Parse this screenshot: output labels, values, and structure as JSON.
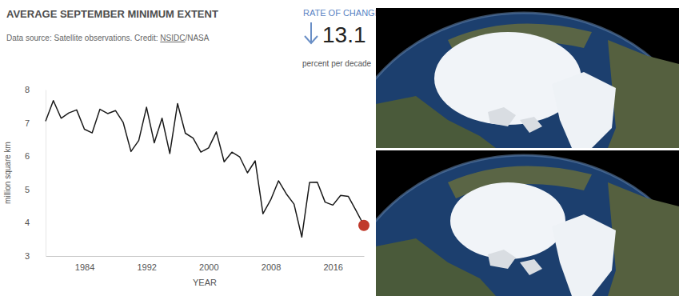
{
  "chart_data": {
    "type": "line",
    "title": "AVERAGE SEPTEMBER MINIMUM EXTENT",
    "source": {
      "text": "Data source: Satellite observations. Credit: ",
      "link": "NSIDC",
      "after": "/NASA"
    },
    "rate_of_change": {
      "label": "RATE OF CHANGE",
      "value": 13.1,
      "unit": "percent per decade"
    },
    "x": [
      1979,
      1980,
      1981,
      1982,
      1983,
      1984,
      1985,
      1986,
      1987,
      1988,
      1989,
      1990,
      1991,
      1992,
      1993,
      1994,
      1995,
      1996,
      1997,
      1998,
      1999,
      2000,
      2001,
      2002,
      2003,
      2004,
      2005,
      2006,
      2007,
      2008,
      2009,
      2010,
      2011,
      2012,
      2013,
      2014,
      2015,
      2016,
      2017,
      2018,
      2019,
      2020
    ],
    "values": [
      7.05,
      7.67,
      7.14,
      7.3,
      7.39,
      6.81,
      6.7,
      7.41,
      7.28,
      7.37,
      7.01,
      6.14,
      6.47,
      7.47,
      6.4,
      7.14,
      6.08,
      7.58,
      6.69,
      6.54,
      6.12,
      6.25,
      6.73,
      5.83,
      6.12,
      5.98,
      5.5,
      5.86,
      4.27,
      4.69,
      5.26,
      4.87,
      4.56,
      3.57,
      5.21,
      5.22,
      4.62,
      4.53,
      4.82,
      4.79,
      4.36,
      3.92
    ],
    "color": "#1a1a1a",
    "xlabel": "YEAR",
    "ylabel": "million square km",
    "xlim": [
      1979,
      2020
    ],
    "ylim": [
      3,
      8
    ],
    "xticks": [
      1984,
      1992,
      2000,
      2008,
      2016
    ],
    "yticks": [
      3,
      4,
      5,
      6,
      7,
      8
    ],
    "grid": false
  }
}
